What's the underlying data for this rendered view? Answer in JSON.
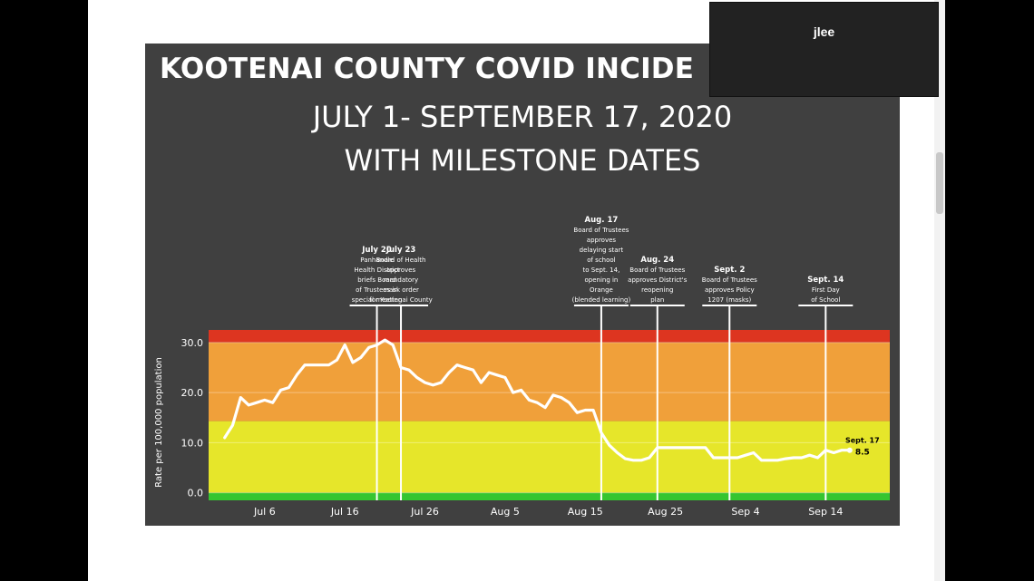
{
  "slide": {
    "title": "KOOTENAI COUNTY COVID INCIDE",
    "subtitle_line1": "JULY 1- SEPTEMBER 17, 2020",
    "subtitle_line2": "WITH MILESTONE DATES"
  },
  "video_tile": {
    "participant_name": "jlee"
  },
  "colors": {
    "slide_background": "#404040",
    "band_red": "#dd3520",
    "band_orange": "#f0a03a",
    "band_yellow": "#e6e62a",
    "band_green": "#35c530",
    "line": "#ffffff"
  },
  "chart_data": {
    "type": "line",
    "ylabel": "Rate per 100,000 population",
    "y_ticks": [
      "0.0",
      "10.0",
      "20.0",
      "30.0"
    ],
    "ylim": [
      -1.5,
      32.5
    ],
    "x_ticks": [
      "Jul 6",
      "Jul 16",
      "Jul 26",
      "Aug 5",
      "Aug 15",
      "Aug 25",
      "Sep 4",
      "Sep 14"
    ],
    "x_tick_values": [
      "2020-07-06",
      "2020-07-16",
      "2020-07-26",
      "2020-08-05",
      "2020-08-15",
      "2020-08-25",
      "2020-09-04",
      "2020-09-14"
    ],
    "xlim": [
      "2020-06-29",
      "2020-09-22"
    ],
    "bands": [
      {
        "from": 30,
        "to": 32.5,
        "color": "red"
      },
      {
        "from": 14.3,
        "to": 30,
        "color": "orange"
      },
      {
        "from": 0,
        "to": 14.3,
        "color": "yellow"
      },
      {
        "from": -1.5,
        "to": 0,
        "color": "green"
      }
    ],
    "grid": false,
    "series": [
      {
        "x": [
          "2020-07-01",
          "2020-07-02",
          "2020-07-03",
          "2020-07-04",
          "2020-07-05",
          "2020-07-06",
          "2020-07-07",
          "2020-07-08",
          "2020-07-09",
          "2020-07-10",
          "2020-07-11",
          "2020-07-12",
          "2020-07-13",
          "2020-07-14",
          "2020-07-15",
          "2020-07-16",
          "2020-07-17",
          "2020-07-18",
          "2020-07-19",
          "2020-07-20",
          "2020-07-21",
          "2020-07-22",
          "2020-07-23",
          "2020-07-24",
          "2020-07-25",
          "2020-07-26",
          "2020-07-27",
          "2020-07-28",
          "2020-07-29",
          "2020-07-30",
          "2020-07-31",
          "2020-08-01",
          "2020-08-02",
          "2020-08-03",
          "2020-08-04",
          "2020-08-05",
          "2020-08-06",
          "2020-08-07",
          "2020-08-08",
          "2020-08-09",
          "2020-08-10",
          "2020-08-11",
          "2020-08-12",
          "2020-08-13",
          "2020-08-14",
          "2020-08-15",
          "2020-08-16",
          "2020-08-17",
          "2020-08-18",
          "2020-08-19",
          "2020-08-20",
          "2020-08-21",
          "2020-08-22",
          "2020-08-23",
          "2020-08-24",
          "2020-08-25",
          "2020-08-26",
          "2020-08-27",
          "2020-08-28",
          "2020-08-29",
          "2020-08-30",
          "2020-08-31",
          "2020-09-01",
          "2020-09-02",
          "2020-09-03",
          "2020-09-04",
          "2020-09-05",
          "2020-09-06",
          "2020-09-07",
          "2020-09-08",
          "2020-09-09",
          "2020-09-10",
          "2020-09-11",
          "2020-09-12",
          "2020-09-13",
          "2020-09-14",
          "2020-09-15",
          "2020-09-16",
          "2020-09-17"
        ],
        "values": [
          11.0,
          13.5,
          19.0,
          17.5,
          18.0,
          18.5,
          18.0,
          20.5,
          21.0,
          23.5,
          25.5,
          25.5,
          25.5,
          25.5,
          26.5,
          29.5,
          26.0,
          27.0,
          29.0,
          29.5,
          30.5,
          29.5,
          25.0,
          24.5,
          23.0,
          22.0,
          21.5,
          22.0,
          24.0,
          25.5,
          25.0,
          24.5,
          22.0,
          24.0,
          23.5,
          23.0,
          20.0,
          20.5,
          18.5,
          18.0,
          17.0,
          19.5,
          19.0,
          18.0,
          16.0,
          16.5,
          16.5,
          12.0,
          9.5,
          8.0,
          6.8,
          6.5,
          6.5,
          7.0,
          9.0,
          9.0,
          9.0,
          9.0,
          9.0,
          9.0,
          9.0,
          7.0,
          7.0,
          7.0,
          7.0,
          7.5,
          8.0,
          6.5,
          6.5,
          6.5,
          6.8,
          7.0,
          7.0,
          7.5,
          7.0,
          8.5,
          8.0,
          8.5,
          8.5
        ]
      }
    ],
    "end_annotation": {
      "label": "Sept. 17",
      "value_label": "8.5"
    },
    "milestones": [
      {
        "date": "2020-07-20",
        "title": "July 20",
        "lines": [
          "Panhandle",
          "Health District",
          "briefs Board",
          "of Trustees in",
          "special meeting"
        ]
      },
      {
        "date": "2020-07-23",
        "title": "July 23",
        "lines": [
          "Board of Health",
          "approves",
          "mandatory",
          "mask order",
          "for Kootenai County"
        ]
      },
      {
        "date": "2020-08-17",
        "title": "Aug. 17",
        "lines": [
          "Board of  Trustees",
          "approves",
          "delaying start",
          "of school",
          "to Sept. 14,",
          "opening in",
          "Orange",
          "(blended learning)"
        ]
      },
      {
        "date": "2020-08-24",
        "title": "Aug. 24",
        "lines": [
          "Board of Trustees",
          "approves District's",
          "reopening",
          "plan"
        ]
      },
      {
        "date": "2020-09-02",
        "title": "Sept. 2",
        "lines": [
          "Board of Trustees",
          "approves Policy",
          "1207 (masks)"
        ]
      },
      {
        "date": "2020-09-14",
        "title": "Sept. 14",
        "lines": [
          "First Day",
          "of School"
        ]
      }
    ]
  }
}
